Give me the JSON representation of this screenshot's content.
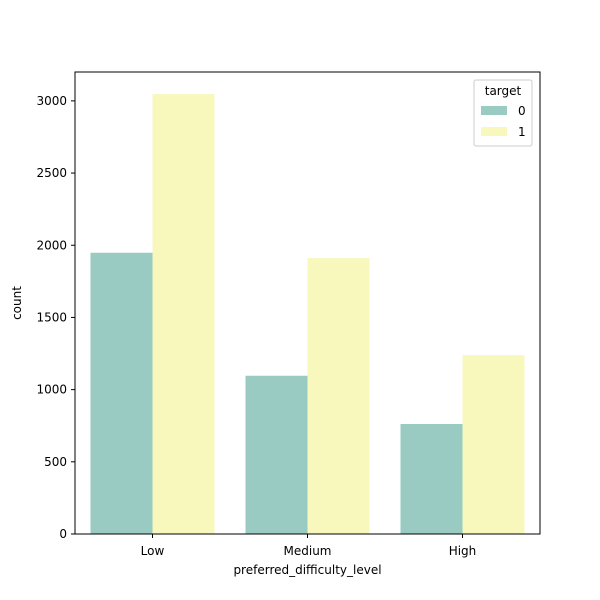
{
  "chart_data": {
    "type": "bar",
    "title": "",
    "xlabel": "preferred_difficulty_level",
    "ylabel": "count",
    "categories": [
      "Low",
      "Medium",
      "High"
    ],
    "series": [
      {
        "name": "0",
        "values": [
          1948,
          1096,
          762
        ],
        "color": "#99cbc2"
      },
      {
        "name": "1",
        "values": [
          3047,
          1911,
          1238
        ],
        "color": "#f8f7bc"
      }
    ],
    "ylim": [
      0,
      3200
    ],
    "yticks": [
      0,
      500,
      1000,
      1500,
      2000,
      2500,
      3000
    ],
    "grid": false,
    "legend": {
      "title": "target",
      "placement": "top-right"
    }
  }
}
